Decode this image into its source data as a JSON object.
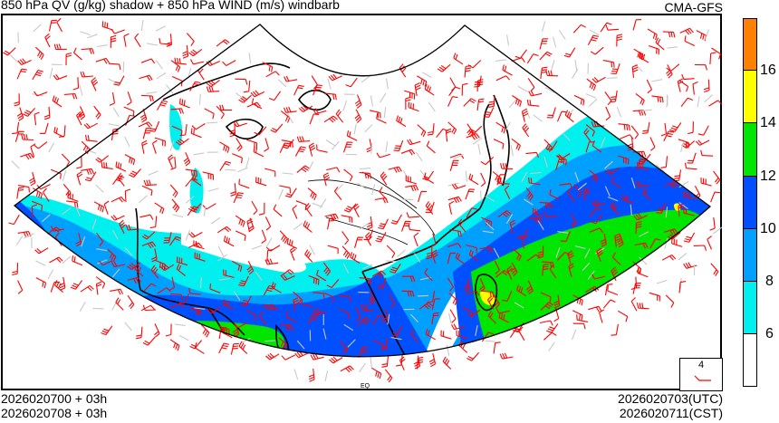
{
  "header": {
    "title": "850 hPa QV (g/kg) shadow + 850 hPa WIND (m/s) windbarb",
    "model": "CMA-GFS"
  },
  "footer": {
    "init_utc": "2026020700 + 03h",
    "init_cst": "2026020708 + 03h",
    "valid_utc": "2026020703(UTC)",
    "valid_cst": "2026020711(CST)"
  },
  "legend": {
    "reference_barb_label": "4",
    "reference_barb_color": "#ff0000"
  },
  "colorbar": {
    "variable": "QV (g/kg)",
    "segments": [
      {
        "range": ">16",
        "color": "#ff7f00"
      },
      {
        "range": "14-16",
        "color": "#ffff00"
      },
      {
        "range": "12-14",
        "color": "#00e600"
      },
      {
        "range": "10-12",
        "color": "#0050ff"
      },
      {
        "range": "8-10",
        "color": "#00a0ff"
      },
      {
        "range": "6-8",
        "color": "#00f0f0"
      },
      {
        "range": "<6",
        "color": "#ffffff"
      }
    ],
    "tick_labels": [
      "16",
      "14",
      "12",
      "10",
      "8",
      "6"
    ]
  },
  "map": {
    "projection": "Lambert conformal sector (Asia)",
    "equator_label": "EQ",
    "barb_color_strong": "#ff0000",
    "barb_color_weak": "#c8c8c8",
    "coastline_color": "#000000"
  }
}
